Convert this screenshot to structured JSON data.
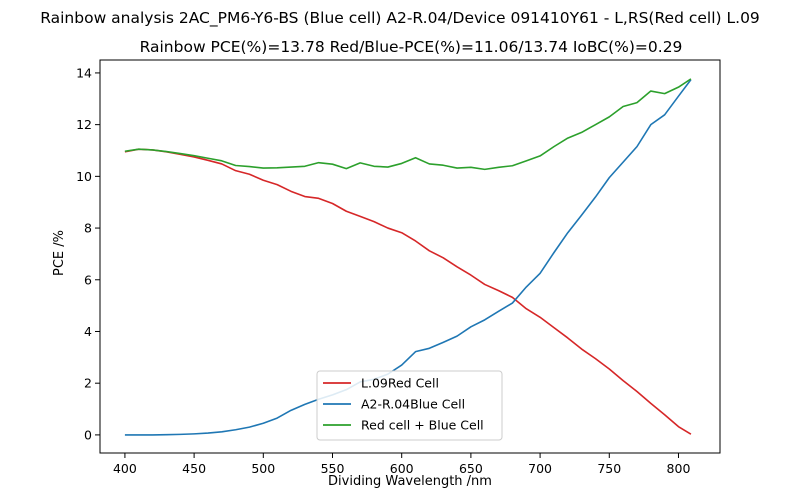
{
  "chart_data": {
    "type": "line",
    "suptitle": "Rainbow analysis 2AC_PM6-Y6-BS (Blue cell) A2-R.04/Device 091410Y61 - L,RS(Red cell) L.09",
    "title": "Rainbow PCE(%)=13.78  Red/Blue-PCE(%)=11.06/13.74   IoBC(%)=0.29",
    "xlabel": "Dividing Wavelength /nm",
    "ylabel": "PCE /%",
    "xlim": [
      382,
      830
    ],
    "ylim": [
      -0.7,
      14.5
    ],
    "xticks": [
      400,
      450,
      500,
      550,
      600,
      650,
      700,
      750,
      800
    ],
    "yticks": [
      0,
      2,
      4,
      6,
      8,
      10,
      12,
      14
    ],
    "grid": false,
    "legend_position": "lower center",
    "series": [
      {
        "name": "L.09Red Cell",
        "color": "#d62728",
        "points": [
          [
            400,
            10.95
          ],
          [
            410,
            11.05
          ],
          [
            420,
            11.02
          ],
          [
            430,
            10.95
          ],
          [
            440,
            10.85
          ],
          [
            450,
            10.75
          ],
          [
            460,
            10.62
          ],
          [
            470,
            10.48
          ],
          [
            480,
            10.22
          ],
          [
            490,
            10.08
          ],
          [
            500,
            9.85
          ],
          [
            510,
            9.68
          ],
          [
            520,
            9.42
          ],
          [
            530,
            9.22
          ],
          [
            540,
            9.15
          ],
          [
            550,
            8.95
          ],
          [
            560,
            8.65
          ],
          [
            570,
            8.45
          ],
          [
            580,
            8.25
          ],
          [
            590,
            8.0
          ],
          [
            600,
            7.82
          ],
          [
            610,
            7.5
          ],
          [
            620,
            7.12
          ],
          [
            630,
            6.85
          ],
          [
            640,
            6.5
          ],
          [
            650,
            6.18
          ],
          [
            660,
            5.82
          ],
          [
            670,
            5.58
          ],
          [
            680,
            5.32
          ],
          [
            690,
            4.88
          ],
          [
            700,
            4.55
          ],
          [
            710,
            4.15
          ],
          [
            720,
            3.75
          ],
          [
            730,
            3.32
          ],
          [
            740,
            2.95
          ],
          [
            750,
            2.55
          ],
          [
            760,
            2.1
          ],
          [
            770,
            1.68
          ],
          [
            780,
            1.22
          ],
          [
            790,
            0.78
          ],
          [
            800,
            0.32
          ],
          [
            809,
            0.03
          ]
        ]
      },
      {
        "name": "A2-R.04Blue Cell",
        "color": "#1f77b4",
        "points": [
          [
            400,
            0.0
          ],
          [
            410,
            0.0
          ],
          [
            420,
            0.0
          ],
          [
            430,
            0.01
          ],
          [
            440,
            0.02
          ],
          [
            450,
            0.04
          ],
          [
            460,
            0.07
          ],
          [
            470,
            0.12
          ],
          [
            480,
            0.2
          ],
          [
            490,
            0.3
          ],
          [
            500,
            0.45
          ],
          [
            510,
            0.65
          ],
          [
            520,
            0.95
          ],
          [
            530,
            1.18
          ],
          [
            540,
            1.38
          ],
          [
            550,
            1.55
          ],
          [
            560,
            1.75
          ],
          [
            570,
            2.05
          ],
          [
            580,
            2.15
          ],
          [
            590,
            2.35
          ],
          [
            600,
            2.7
          ],
          [
            610,
            3.22
          ],
          [
            620,
            3.35
          ],
          [
            630,
            3.58
          ],
          [
            640,
            3.82
          ],
          [
            650,
            4.18
          ],
          [
            660,
            4.45
          ],
          [
            670,
            4.78
          ],
          [
            680,
            5.1
          ],
          [
            690,
            5.72
          ],
          [
            700,
            6.25
          ],
          [
            710,
            7.05
          ],
          [
            720,
            7.82
          ],
          [
            730,
            8.5
          ],
          [
            740,
            9.2
          ],
          [
            750,
            9.95
          ],
          [
            760,
            10.55
          ],
          [
            770,
            11.15
          ],
          [
            780,
            12.0
          ],
          [
            790,
            12.38
          ],
          [
            800,
            13.1
          ],
          [
            809,
            13.74
          ]
        ]
      },
      {
        "name": "Red cell + Blue Cell",
        "color": "#2ca02c",
        "points": [
          [
            400,
            10.97
          ],
          [
            410,
            11.05
          ],
          [
            420,
            11.02
          ],
          [
            430,
            10.96
          ],
          [
            440,
            10.88
          ],
          [
            450,
            10.8
          ],
          [
            460,
            10.7
          ],
          [
            470,
            10.6
          ],
          [
            480,
            10.42
          ],
          [
            490,
            10.38
          ],
          [
            500,
            10.32
          ],
          [
            510,
            10.33
          ],
          [
            520,
            10.36
          ],
          [
            530,
            10.39
          ],
          [
            540,
            10.53
          ],
          [
            550,
            10.47
          ],
          [
            560,
            10.3
          ],
          [
            570,
            10.52
          ],
          [
            580,
            10.39
          ],
          [
            590,
            10.36
          ],
          [
            600,
            10.5
          ],
          [
            610,
            10.72
          ],
          [
            620,
            10.48
          ],
          [
            630,
            10.43
          ],
          [
            640,
            10.32
          ],
          [
            650,
            10.35
          ],
          [
            660,
            10.27
          ],
          [
            670,
            10.35
          ],
          [
            680,
            10.41
          ],
          [
            690,
            10.6
          ],
          [
            700,
            10.79
          ],
          [
            710,
            11.15
          ],
          [
            720,
            11.48
          ],
          [
            730,
            11.7
          ],
          [
            740,
            12.0
          ],
          [
            750,
            12.3
          ],
          [
            760,
            12.7
          ],
          [
            770,
            12.85
          ],
          [
            780,
            13.3
          ],
          [
            790,
            13.2
          ],
          [
            800,
            13.45
          ],
          [
            809,
            13.77
          ]
        ]
      }
    ]
  }
}
